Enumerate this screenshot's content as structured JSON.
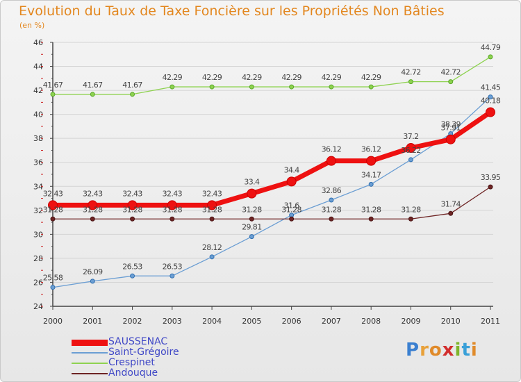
{
  "title": "Evolution du Taux de Taxe Foncière sur les Propriétés Non Bâties",
  "unit_label": "(en %)",
  "logo": {
    "letters": [
      "P",
      "r",
      "o",
      "x",
      "i",
      "t",
      "i"
    ],
    "colors": [
      "#3a7fd0",
      "#e8a13a",
      "#e08a2a",
      "#d22d2d",
      "#7fb52c",
      "#3aa0d8",
      "#e08a2a"
    ]
  },
  "colors": {
    "title": "#e3871f",
    "legend_text": "#3f47c6",
    "axis": "#444444",
    "grid": "#d4d4d4"
  },
  "chart_data": {
    "type": "line",
    "title": "Evolution du Taux de Taxe Foncière sur les Propriétés Non Bâties",
    "ylabel": "(en %)",
    "xlabel": "",
    "x": [
      "2000",
      "2001",
      "2002",
      "2003",
      "2004",
      "2005",
      "2006",
      "2007",
      "2008",
      "2009",
      "2010",
      "2011"
    ],
    "ylim": [
      24,
      46
    ],
    "yticks": [
      24,
      26,
      28,
      30,
      32,
      34,
      36,
      38,
      40,
      42,
      44,
      46
    ],
    "grid": "horizontal",
    "legend": "bottom-left",
    "series": [
      {
        "name": "SAUSSENAC",
        "color": "#ee1111",
        "values": [
          32.43,
          32.43,
          32.43,
          32.43,
          32.43,
          33.4,
          34.4,
          36.12,
          36.12,
          37.2,
          37.91,
          40.18
        ],
        "labels": [
          "32.43",
          "32.43",
          "32.43",
          "32.43",
          "32.43",
          "33.4",
          "34.4",
          "36.12",
          "36.12",
          "37.2",
          "37.91",
          "40.18"
        ]
      },
      {
        "name": "Saint-Grégoire",
        "color": "#6b9ed3",
        "values": [
          25.58,
          26.09,
          26.53,
          26.53,
          28.12,
          29.81,
          31.6,
          32.86,
          34.17,
          36.22,
          38.39,
          41.45
        ],
        "labels": [
          "25.58",
          "26.09",
          "26.53",
          "26.53",
          "28.12",
          "29.81",
          "31.6",
          "32.86",
          "34.17",
          "36.22",
          "38.39",
          "41.45"
        ]
      },
      {
        "name": "Crespinet",
        "color": "#8ed250",
        "values": [
          41.67,
          41.67,
          41.67,
          42.29,
          42.29,
          42.29,
          42.29,
          42.29,
          42.29,
          42.72,
          42.72,
          44.79
        ],
        "labels": [
          "41.67",
          "41.67",
          "41.67",
          "42.29",
          "42.29",
          "42.29",
          "42.29",
          "42.29",
          "42.29",
          "42.72",
          "42.72",
          "44.79"
        ]
      },
      {
        "name": "Andouque",
        "color": "#6e2424",
        "values": [
          31.28,
          31.28,
          31.28,
          31.28,
          31.28,
          31.28,
          31.28,
          31.28,
          31.28,
          31.28,
          31.74,
          33.95
        ],
        "labels": [
          "31.28",
          "31.28",
          "31.28",
          "31.28",
          "31.28",
          "31.28",
          "31.28",
          "31.28",
          "31.28",
          "31.28",
          "31.74",
          "33.95"
        ]
      }
    ]
  }
}
